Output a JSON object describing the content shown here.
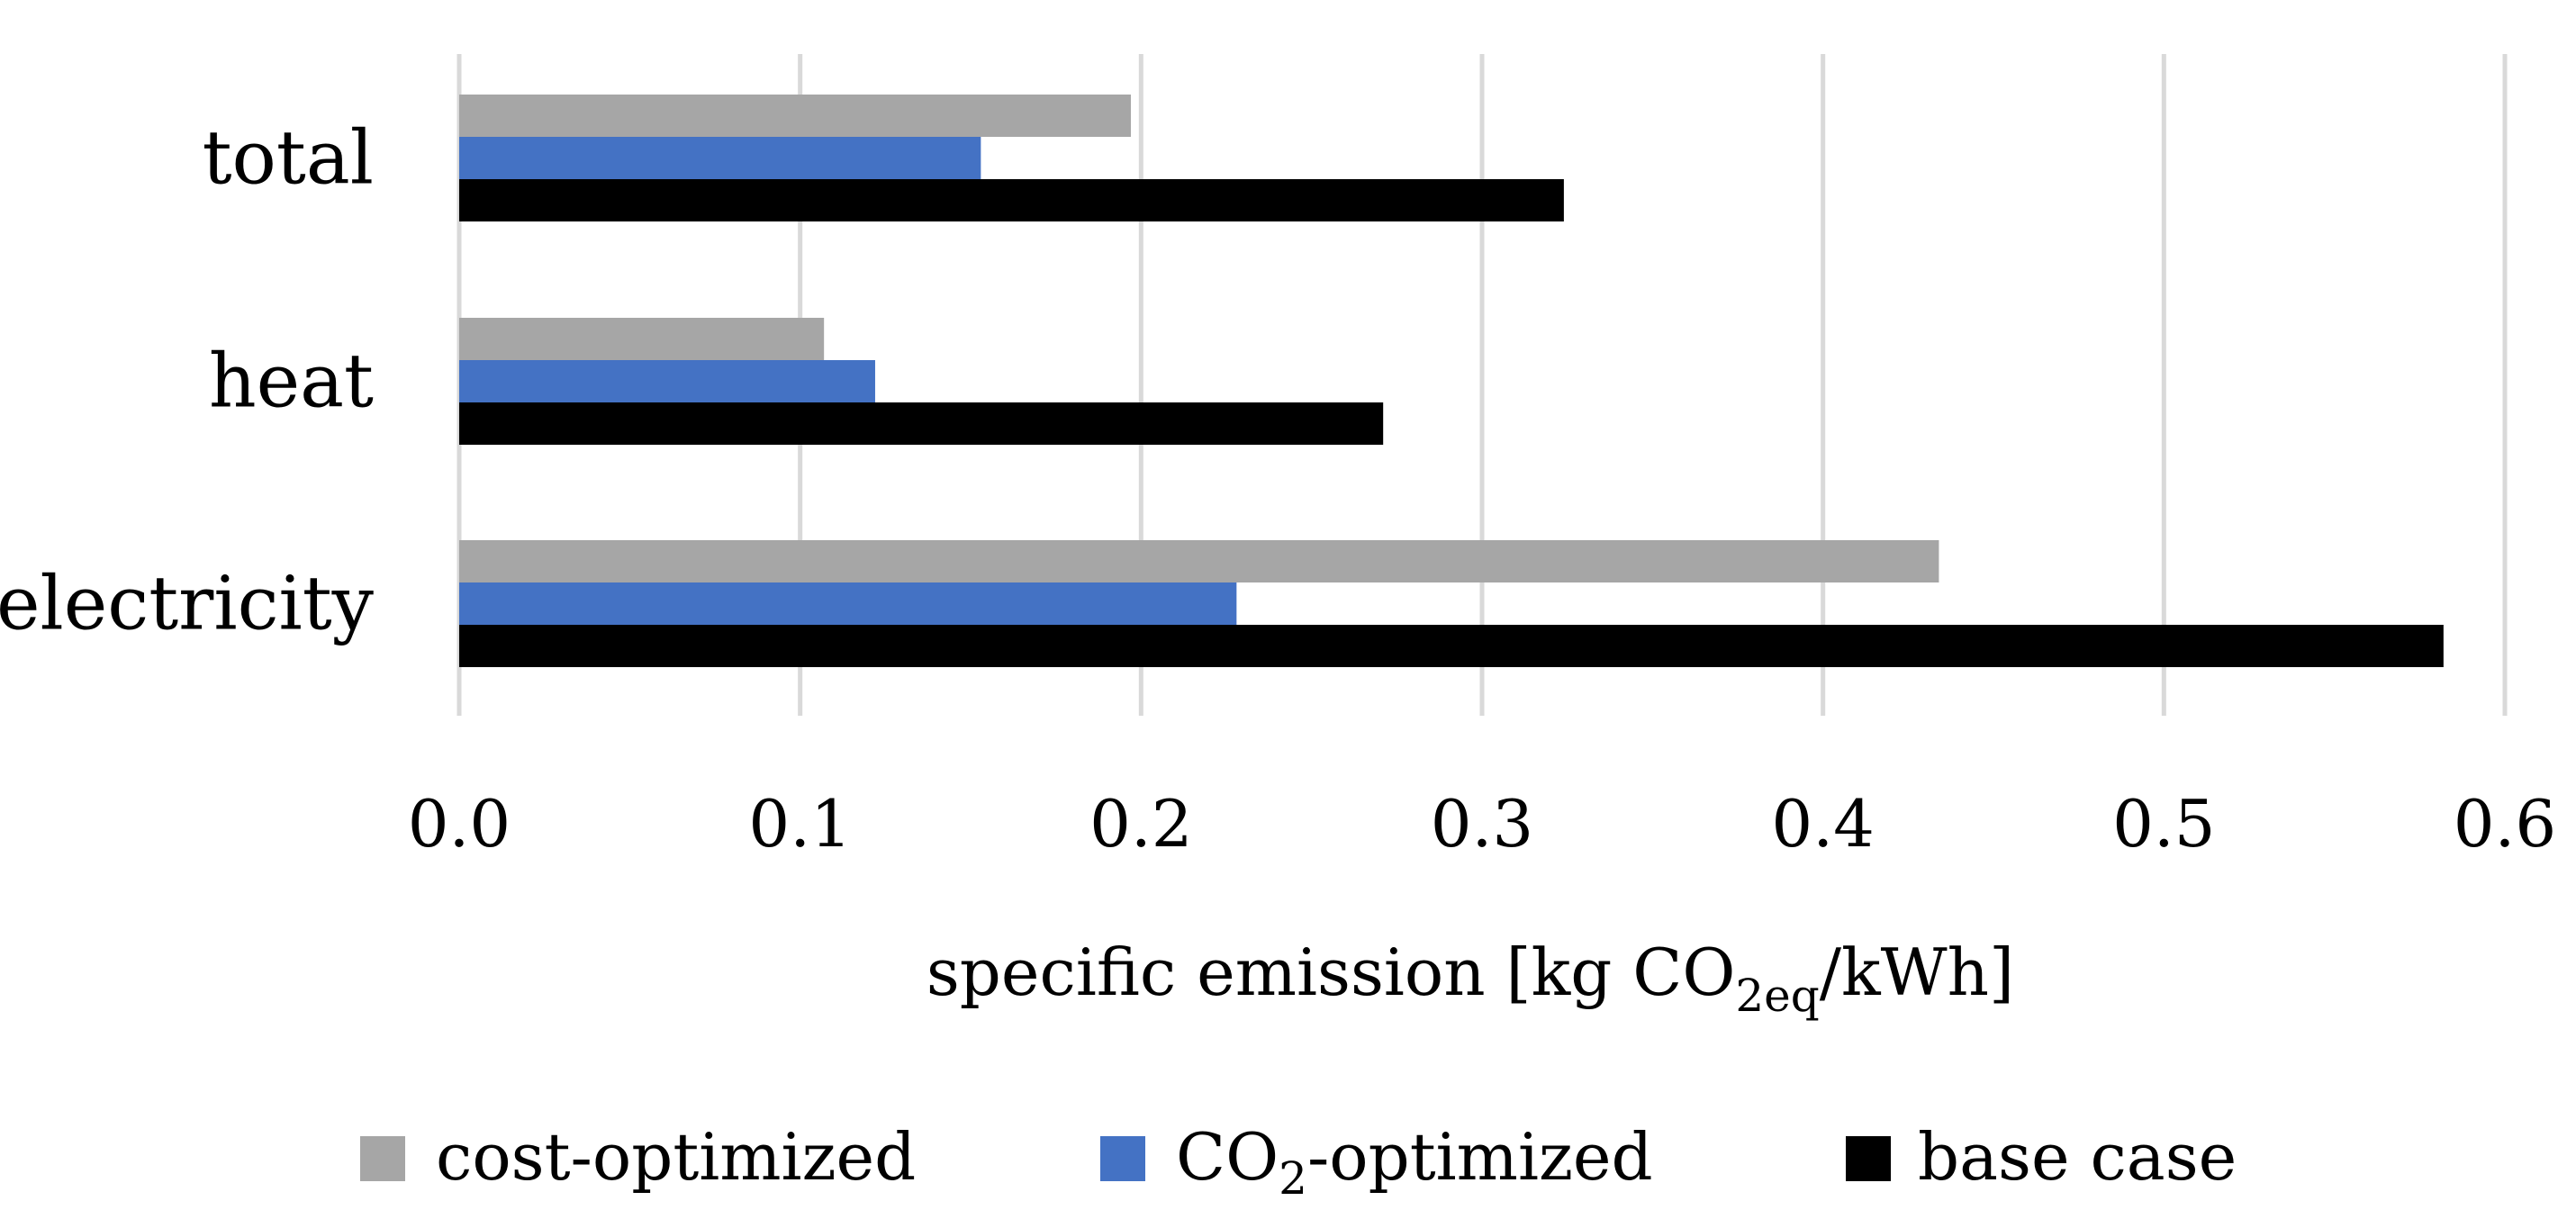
{
  "chart_data": {
    "type": "bar",
    "orientation": "horizontal",
    "categories": [
      "total",
      "heat",
      "electricity"
    ],
    "series": [
      {
        "name": "cost-optimized",
        "color": "#a6a6a6",
        "values": [
          0.197,
          0.107,
          0.434
        ]
      },
      {
        "name": "CO2-optimized",
        "color": "#4472c4",
        "values": [
          0.153,
          0.122,
          0.228
        ]
      },
      {
        "name": "base case",
        "color": "#000000",
        "values": [
          0.324,
          0.271,
          0.582
        ]
      }
    ],
    "xlim": [
      0,
      0.6
    ],
    "xticks": [
      "0.0",
      "0.1",
      "0.2",
      "0.3",
      "0.4",
      "0.5",
      "0.6"
    ],
    "xlabel": {
      "prefix": "specific emission [kg CO",
      "subscript": "2eq",
      "suffix": "/kWh]"
    },
    "legend": {
      "position": "bottom",
      "items": [
        {
          "prefix": "cost-optimized",
          "subscript": "",
          "suffix": ""
        },
        {
          "prefix": "CO",
          "subscript": "2",
          "suffix": "-optimized"
        },
        {
          "prefix": "base case",
          "subscript": "",
          "suffix": ""
        }
      ]
    },
    "grid": true
  }
}
